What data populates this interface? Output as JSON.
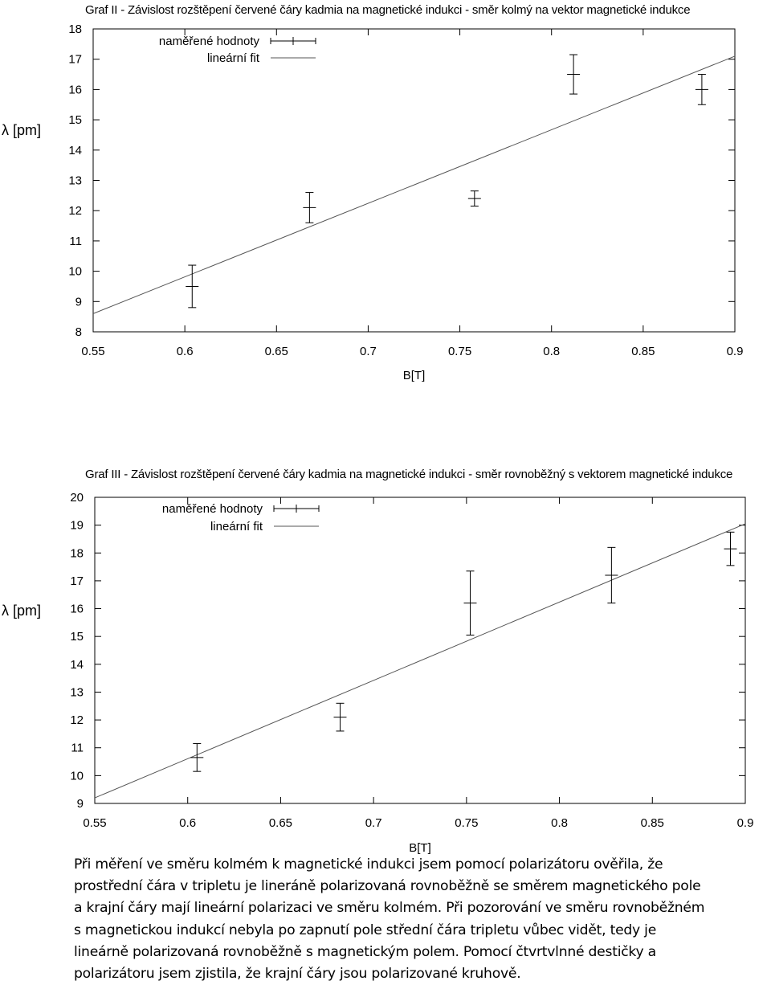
{
  "chart_data": [
    {
      "type": "scatter",
      "title": "Graf II - Závislost rozštěpení červené čáry kadmia na magnetické indukci - směr kolmý na vektor magnetické indukce",
      "xlabel": "B[T]",
      "ylabel": "λ [pm]",
      "xlim": [
        0.55,
        0.9
      ],
      "ylim": [
        8,
        18
      ],
      "xticks": [
        "0.55",
        "0.6",
        "0.65",
        "0.7",
        "0.75",
        "0.8",
        "0.85",
        "0.9"
      ],
      "yticks": [
        "8",
        "9",
        "10",
        "11",
        "12",
        "13",
        "14",
        "15",
        "16",
        "17",
        "18"
      ],
      "grid": false,
      "legend_position": "top-left",
      "series": [
        {
          "name": "naměřené hodnoty",
          "style": "points-with-error-bars",
          "x": [
            0.604,
            0.668,
            0.758,
            0.812,
            0.882
          ],
          "y": [
            9.5,
            12.1,
            12.4,
            16.5,
            16.0
          ],
          "y_err": [
            0.7,
            0.5,
            0.25,
            0.65,
            0.5
          ],
          "x_err": [
            0.003,
            0.003,
            0.003,
            0.003,
            0.003
          ]
        },
        {
          "name": "lineární fit",
          "style": "line",
          "x": [
            0.55,
            0.9
          ],
          "y": [
            8.6,
            17.1
          ]
        }
      ]
    },
    {
      "type": "scatter",
      "title": "Graf III - Závislost rozštěpení červené čáry kadmia na magnetické indukci - směr rovnoběžný s vektorem magnetické indukce",
      "xlabel": "B[T]",
      "ylabel": "λ [pm]",
      "xlim": [
        0.55,
        0.9
      ],
      "ylim": [
        9,
        20
      ],
      "xticks": [
        "0.55",
        "0.6",
        "0.65",
        "0.7",
        "0.75",
        "0.8",
        "0.85",
        "0.9"
      ],
      "yticks": [
        "9",
        "10",
        "11",
        "12",
        "13",
        "14",
        "15",
        "16",
        "17",
        "18",
        "19",
        "20"
      ],
      "grid": false,
      "legend_position": "top-left",
      "series": [
        {
          "name": "naměřené hodnoty",
          "style": "points-with-error-bars",
          "x": [
            0.605,
            0.682,
            0.752,
            0.828,
            0.892
          ],
          "y": [
            10.65,
            12.1,
            16.2,
            17.2,
            18.15
          ],
          "y_err": [
            0.5,
            0.5,
            1.15,
            1.0,
            0.6
          ],
          "x_err": [
            0.003,
            0.003,
            0.003,
            0.003,
            0.003
          ]
        },
        {
          "name": "lineární fit",
          "style": "line",
          "x": [
            0.55,
            0.9
          ],
          "y": [
            9.2,
            19.05
          ]
        }
      ]
    }
  ],
  "paragraph": [
    "Při měření ve směru kolmém k magnetické indukci jsem pomocí polarizátoru ověřila, že",
    "prostřední čára v tripletu je lineráně polarizovaná rovnoběžně se směrem magnetického pole",
    "a krajní čáry mají lineární polarizaci ve směru kolmém. Při pozorování ve směru rovnoběžném",
    "s magnetickou indukcí nebyla po zapnutí pole střední čára tripletu vůbec vidět, tedy je",
    "lineárně polarizovaná rovnoběžně s magnetickým polem. Pomocí čtvrtvlnné destičky a",
    "polarizátoru jsem zjistila, že krajní čáry jsou polarizované kruhově."
  ]
}
